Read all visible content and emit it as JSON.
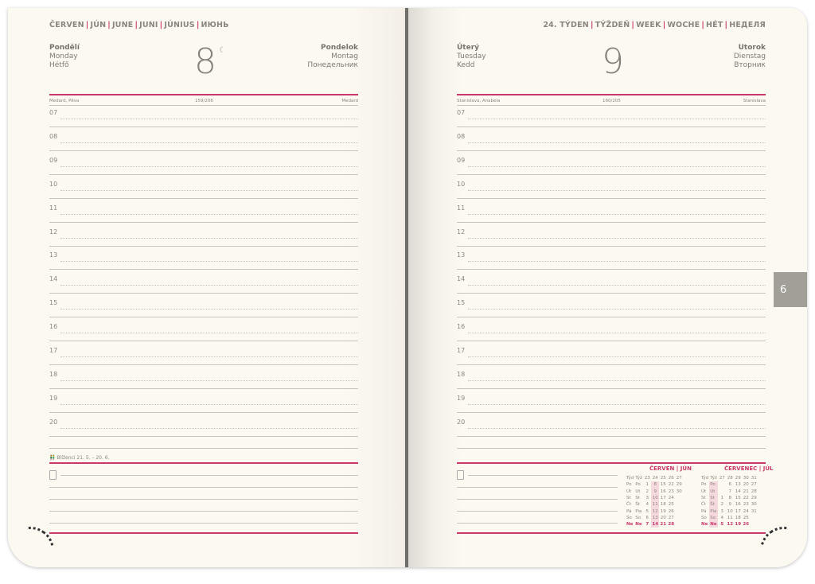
{
  "left": {
    "header": [
      "ČERVEN",
      "JÚN",
      "JUNE",
      "JUNI",
      "JÚNIUS",
      "ИЮНЬ"
    ],
    "day_names_left": [
      "Pondělí",
      "Monday",
      "Hétfő"
    ],
    "day_names_right": [
      "Pondelok",
      "Montag",
      "Понедельник"
    ],
    "day": "8",
    "moon_icon": "☾",
    "nameday_left": "Medard, Pěva",
    "day_count": "159/206",
    "nameday_right": "Medard",
    "zodiac_icon": "gemini-icon",
    "zodiac": "Blíženci 21. 5. – 20. 6."
  },
  "right": {
    "header": [
      "24. TÝDEN",
      "TÝŽDEŇ",
      "WEEK",
      "WOCHE",
      "HÉT",
      "НЕДЕЛЯ"
    ],
    "day_names_left": [
      "Úterý",
      "Tuesday",
      "Kedd"
    ],
    "day_names_right": [
      "Utorok",
      "Dienstag",
      "Вторник"
    ],
    "day": "9",
    "nameday_left": "Stanislava, Anabela",
    "day_count": "160/205",
    "nameday_right": "Stanislava",
    "tab": "6"
  },
  "hours": [
    "07",
    "08",
    "09",
    "10",
    "11",
    "12",
    "13",
    "14",
    "15",
    "16",
    "17",
    "18",
    "19",
    "20"
  ],
  "calendars": [
    {
      "title": "ČERVEN | JÚN",
      "highlight_col": 1,
      "head": [
        "Týd",
        "Týž",
        "23",
        "24",
        "25",
        "26",
        "27"
      ],
      "rows": [
        [
          "Po",
          "Po",
          "1",
          "8",
          "15",
          "22",
          "29"
        ],
        [
          "Út",
          "Ut",
          "2",
          "9",
          "16",
          "23",
          "30"
        ],
        [
          "St",
          "St",
          "3",
          "10",
          "17",
          "24",
          ""
        ],
        [
          "Čt",
          "Št",
          "4",
          "11",
          "18",
          "25",
          ""
        ],
        [
          "Pá",
          "Pia",
          "5",
          "12",
          "19",
          "26",
          ""
        ],
        [
          "So",
          "So",
          "6",
          "13",
          "20",
          "27",
          ""
        ],
        [
          "Ne",
          "Ne",
          "7",
          "14",
          "21",
          "28",
          ""
        ]
      ]
    },
    {
      "title": "ČERVENEC | JÚL",
      "highlight_col": -1,
      "head": [
        "Týd",
        "Týž",
        "27",
        "28",
        "29",
        "30",
        "31"
      ],
      "rows": [
        [
          "Po",
          "Po",
          "",
          "6",
          "13",
          "20",
          "27"
        ],
        [
          "Út",
          "Ut",
          "",
          "7",
          "14",
          "21",
          "28"
        ],
        [
          "St",
          "St",
          "1",
          "8",
          "15",
          "22",
          "29"
        ],
        [
          "Čt",
          "Št",
          "2",
          "9",
          "16",
          "23",
          "30"
        ],
        [
          "Pá",
          "Pia",
          "3",
          "10",
          "17",
          "24",
          "31"
        ],
        [
          "So",
          "So",
          "4",
          "11",
          "18",
          "25",
          ""
        ],
        [
          "Ne",
          "Ne",
          "5",
          "12",
          "19",
          "26",
          ""
        ]
      ]
    }
  ],
  "colors": {
    "accent": "#c8386a",
    "paper": "#fcf9f1",
    "text": "#7d7a74",
    "tab": "#a29f99"
  }
}
